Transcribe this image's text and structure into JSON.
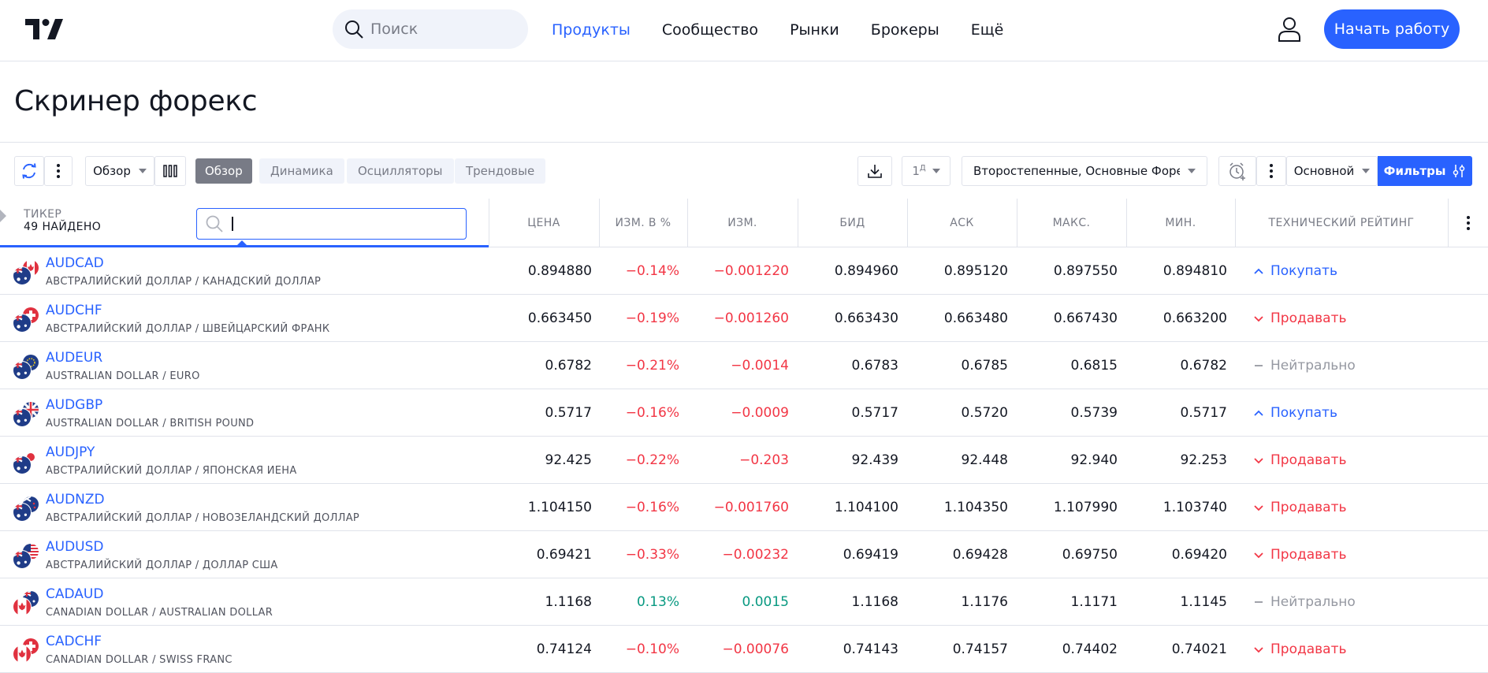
{
  "header": {
    "search_placeholder": "Поиск",
    "nav": [
      "Продукты",
      "Сообщество",
      "Рынки",
      "Брокеры",
      "Ещё"
    ],
    "start_button": "Начать работу"
  },
  "page_title": "Скринер форекс",
  "toolbar": {
    "view_select": "Обзор",
    "tabs": [
      "Обзор",
      "Динамика",
      "Осцилляторы",
      "Трендовые"
    ],
    "interval": "1",
    "interval_sup": "Д",
    "markets": "Второстепенные, Основные Форек...",
    "preset": "Основной",
    "filters": "Фильтры"
  },
  "table": {
    "ticker_label": "ТИКЕР",
    "found_label": "49 НАЙДЕНО",
    "columns": [
      "ЦЕНА",
      "ИЗМ. В %",
      "ИЗМ.",
      "БИД",
      "АСК",
      "МАКС.",
      "МИН.",
      "ТЕХНИЧЕСКИЙ РЕЙТИНГ"
    ],
    "rows": [
      {
        "symbol": "AUDCAD",
        "desc": "АВСТРАЛИЙСКИЙ ДОЛЛАР / КАНАДСКИЙ ДОЛЛАР",
        "price": "0.894880",
        "chg_pct": "−0.14%",
        "chg": "−0.001220",
        "bid": "0.894960",
        "ask": "0.895120",
        "high": "0.897550",
        "low": "0.894810",
        "rating": "Покупать",
        "dir": "neg",
        "rtype": "buy",
        "base": "AU",
        "quote": "CA"
      },
      {
        "symbol": "AUDCHF",
        "desc": "АВСТРАЛИЙСКИЙ ДОЛЛАР / ШВЕЙЦАРСКИЙ ФРАНК",
        "price": "0.663450",
        "chg_pct": "−0.19%",
        "chg": "−0.001260",
        "bid": "0.663430",
        "ask": "0.663480",
        "high": "0.667430",
        "low": "0.663200",
        "rating": "Продавать",
        "dir": "neg",
        "rtype": "sell",
        "base": "AU",
        "quote": "CH"
      },
      {
        "symbol": "AUDEUR",
        "desc": "AUSTRALIAN DOLLAR / EURO",
        "price": "0.6782",
        "chg_pct": "−0.21%",
        "chg": "−0.0014",
        "bid": "0.6783",
        "ask": "0.6785",
        "high": "0.6815",
        "low": "0.6782",
        "rating": "Нейтрально",
        "dir": "neg",
        "rtype": "neutral",
        "base": "AU",
        "quote": "EU"
      },
      {
        "symbol": "AUDGBP",
        "desc": "AUSTRALIAN DOLLAR / BRITISH POUND",
        "price": "0.5717",
        "chg_pct": "−0.16%",
        "chg": "−0.0009",
        "bid": "0.5717",
        "ask": "0.5720",
        "high": "0.5739",
        "low": "0.5717",
        "rating": "Покупать",
        "dir": "neg",
        "rtype": "buy",
        "base": "AU",
        "quote": "GB"
      },
      {
        "symbol": "AUDJPY",
        "desc": "АВСТРАЛИЙСКИЙ ДОЛЛАР / ЯПОНСКАЯ ИЕНА",
        "price": "92.425",
        "chg_pct": "−0.22%",
        "chg": "−0.203",
        "bid": "92.439",
        "ask": "92.448",
        "high": "92.940",
        "low": "92.253",
        "rating": "Продавать",
        "dir": "neg",
        "rtype": "sell",
        "base": "AU",
        "quote": "JP"
      },
      {
        "symbol": "AUDNZD",
        "desc": "АВСТРАЛИЙСКИЙ ДОЛЛАР / НОВОЗЕЛАНДСКИЙ ДОЛЛАР",
        "price": "1.104150",
        "chg_pct": "−0.16%",
        "chg": "−0.001760",
        "bid": "1.104100",
        "ask": "1.104350",
        "high": "1.107990",
        "low": "1.103740",
        "rating": "Продавать",
        "dir": "neg",
        "rtype": "sell",
        "base": "AU",
        "quote": "NZ"
      },
      {
        "symbol": "AUDUSD",
        "desc": "АВСТРАЛИЙСКИЙ ДОЛЛАР / ДОЛЛАР США",
        "price": "0.69421",
        "chg_pct": "−0.33%",
        "chg": "−0.00232",
        "bid": "0.69419",
        "ask": "0.69428",
        "high": "0.69750",
        "low": "0.69420",
        "rating": "Продавать",
        "dir": "neg",
        "rtype": "sell",
        "base": "AU",
        "quote": "US"
      },
      {
        "symbol": "CADAUD",
        "desc": "CANADIAN DOLLAR / AUSTRALIAN DOLLAR",
        "price": "1.1168",
        "chg_pct": "0.13%",
        "chg": "0.0015",
        "bid": "1.1168",
        "ask": "1.1176",
        "high": "1.1171",
        "low": "1.1145",
        "rating": "Нейтрально",
        "dir": "pos",
        "rtype": "neutral",
        "base": "CA",
        "quote": "AU"
      },
      {
        "symbol": "CADCHF",
        "desc": "CANADIAN DOLLAR / SWISS FRANC",
        "price": "0.74124",
        "chg_pct": "−0.10%",
        "chg": "−0.00076",
        "bid": "0.74143",
        "ask": "0.74157",
        "high": "0.74402",
        "low": "0.74021",
        "rating": "Продавать",
        "dir": "neg",
        "rtype": "sell",
        "base": "CA",
        "quote": "CH"
      }
    ]
  },
  "colors": {
    "accent": "#2962ff",
    "negative": "#f23645",
    "positive": "#089981",
    "neutral": "#9598a1"
  }
}
